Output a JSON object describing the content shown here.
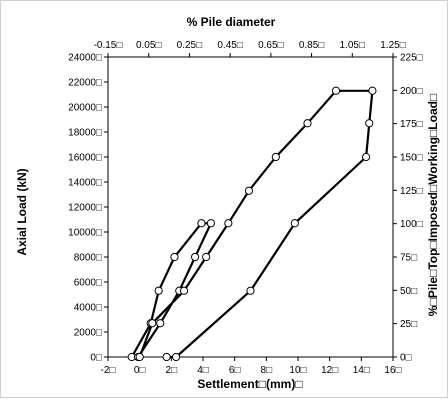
{
  "chart_data": {
    "type": "scatter",
    "title": "% Pile diameter",
    "xlabel": "Settlement□(mm)□",
    "ylabel": "Axial Load (kN)",
    "y2label": "%□Pile□Top□Imposed□Working□Load□",
    "xlim": [
      -2,
      16
    ],
    "ylim": [
      0,
      24000
    ],
    "x2lim": [
      -0.15,
      1.25
    ],
    "y2lim": [
      0,
      225
    ],
    "grid": false,
    "x_ticks": [
      "-2□",
      "0□",
      "2□",
      "4□",
      "6□",
      "8□",
      "10□",
      "12□",
      "14□",
      "16□"
    ],
    "y_ticks": [
      "0□",
      "2000□",
      "4000□",
      "6000□",
      "8000□",
      "10000□",
      "12000□",
      "14000□",
      "16000□",
      "18000□",
      "20000□",
      "22000□",
      "24000□"
    ],
    "x2_ticks": [
      "-0.15□",
      "0.05□",
      "0.25□",
      "0.45□",
      "0.65□",
      "0.85□",
      "1.05□",
      "1.25□"
    ],
    "y2_ticks": [
      "0□",
      "25□",
      "50□",
      "75□",
      "100□",
      "125□",
      "150□",
      "175□",
      "200□",
      "225□"
    ],
    "series": [
      {
        "points": [
          [
            -0.5,
            0
          ],
          [
            0.7,
            2700
          ],
          [
            1.2,
            5300
          ],
          [
            2.2,
            8000
          ],
          [
            3.9,
            10700
          ],
          [
            4.5,
            10700
          ],
          [
            3.5,
            8000
          ],
          [
            2.5,
            5300
          ],
          [
            1.3,
            2700
          ],
          [
            -0.1,
            0
          ],
          [
            0.0,
            0
          ],
          [
            0.8,
            2700
          ],
          [
            2.8,
            5300
          ],
          [
            4.2,
            8000
          ],
          [
            5.6,
            10700
          ],
          [
            6.9,
            13300
          ],
          [
            8.6,
            16000
          ],
          [
            10.6,
            18700
          ],
          [
            12.4,
            21300
          ],
          [
            14.7,
            21300
          ],
          [
            14.5,
            18700
          ],
          [
            14.3,
            16000
          ],
          [
            9.8,
            10700
          ],
          [
            7.0,
            5300
          ],
          [
            2.3,
            0
          ],
          [
            1.7,
            0
          ]
        ]
      }
    ]
  }
}
